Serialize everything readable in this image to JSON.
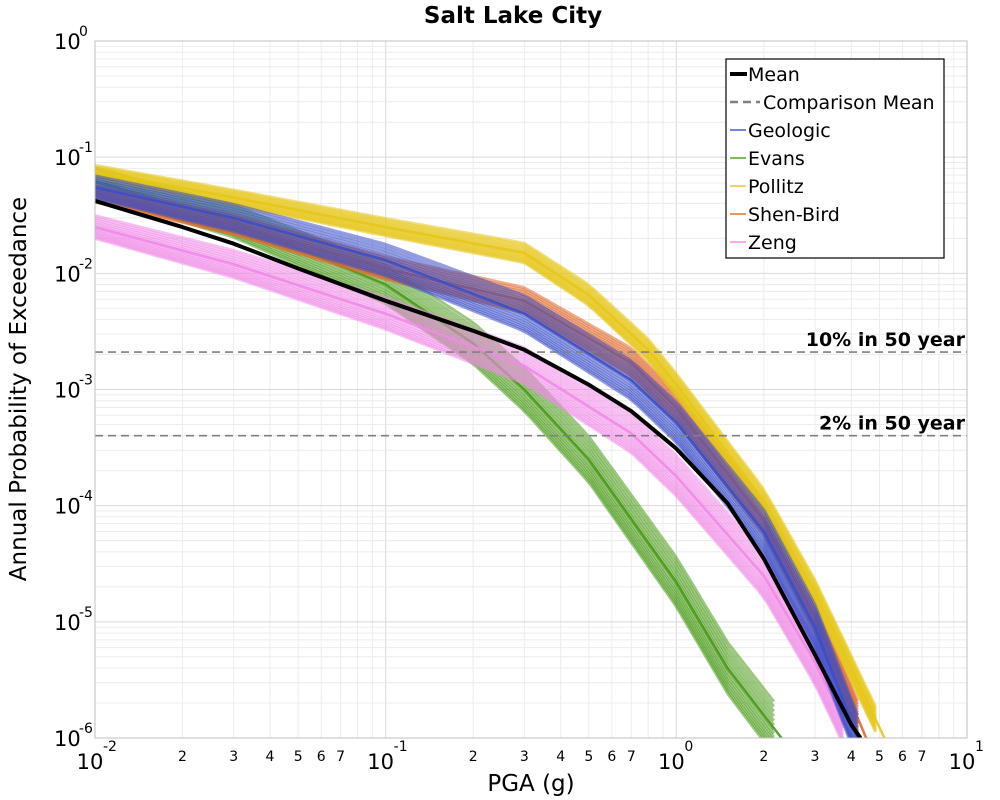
{
  "chart_data": {
    "type": "line",
    "title": "Salt Lake City",
    "xlabel": "PGA (g)",
    "ylabel": "Annual Probability of Exceedance",
    "x_scale": "log",
    "y_scale": "log",
    "xlim": [
      0.01,
      10
    ],
    "ylim": [
      1e-06,
      1
    ],
    "grid": true,
    "legend_position": "top-right",
    "x_major_ticks": [
      {
        "base": "10",
        "exp": "-2",
        "value": 0.01
      },
      {
        "base": "10",
        "exp": "-1",
        "value": 0.1
      },
      {
        "base": "10",
        "exp": "0",
        "value": 1
      },
      {
        "base": "10",
        "exp": "1",
        "value": 10
      }
    ],
    "y_major_ticks": [
      {
        "base": "10",
        "exp": "0",
        "value": 1
      },
      {
        "base": "10",
        "exp": "-1",
        "value": 0.1
      },
      {
        "base": "10",
        "exp": "-2",
        "value": 0.01
      },
      {
        "base": "10",
        "exp": "-3",
        "value": 0.001
      },
      {
        "base": "10",
        "exp": "-4",
        "value": 0.0001
      },
      {
        "base": "10",
        "exp": "-5",
        "value": 1e-05
      },
      {
        "base": "10",
        "exp": "-6",
        "value": 1e-06
      }
    ],
    "x_minor_tick_labels": [
      "2",
      "3",
      "4",
      "5",
      "6",
      "7"
    ],
    "reference_lines": [
      {
        "label": "10% in 50 year",
        "y": 0.0021,
        "color": "#808080"
      },
      {
        "label": "2% in 50 year",
        "y": 0.0004,
        "color": "#808080"
      }
    ],
    "legend": [
      {
        "label": "Mean",
        "color": "#000000",
        "style": "solid-thick"
      },
      {
        "label": "Comparison Mean",
        "color": "#808080",
        "style": "dashed"
      },
      {
        "label": "Geologic",
        "color": "#3a4fc8",
        "style": "solid"
      },
      {
        "label": "Evans",
        "color": "#4a9a1a",
        "style": "solid"
      },
      {
        "label": "Pollitz",
        "color": "#e6c619",
        "style": "solid"
      },
      {
        "label": "Shen-Bird",
        "color": "#e0672a",
        "style": "solid"
      },
      {
        "label": "Zeng",
        "color": "#f08ae8",
        "style": "solid"
      }
    ],
    "series": [
      {
        "name": "Mean",
        "color": "#000000",
        "x": [
          0.01,
          0.02,
          0.03,
          0.05,
          0.1,
          0.2,
          0.3,
          0.5,
          0.7,
          1.0,
          1.5,
          2.0,
          3.0,
          4.0,
          4.3
        ],
        "y": [
          0.042,
          0.025,
          0.018,
          0.011,
          0.0058,
          0.0032,
          0.0022,
          0.0011,
          0.00065,
          0.00031,
          0.000105,
          3.5e-05,
          5.2e-06,
          1.3e-06,
          1e-06
        ]
      },
      {
        "name": "Geologic",
        "color": "#3a4fc8",
        "x": [
          0.01,
          0.03,
          0.1,
          0.3,
          0.7,
          1.0,
          2.0,
          3.0,
          4.2
        ],
        "y": [
          0.055,
          0.03,
          0.013,
          0.0045,
          0.0012,
          0.00052,
          6e-05,
          9e-06,
          1e-06
        ]
      },
      {
        "name": "Evans",
        "color": "#4a9a1a",
        "x": [
          0.01,
          0.03,
          0.1,
          0.2,
          0.3,
          0.5,
          1.0,
          1.5,
          2.3
        ],
        "y": [
          0.062,
          0.028,
          0.008,
          0.0025,
          0.001,
          0.00025,
          2.2e-05,
          4e-06,
          1e-06
        ]
      },
      {
        "name": "Pollitz",
        "color": "#e6c619",
        "x": [
          0.01,
          0.03,
          0.1,
          0.3,
          0.5,
          0.8,
          1.0,
          2.0,
          3.0,
          5.2
        ],
        "y": [
          0.075,
          0.045,
          0.025,
          0.015,
          0.0065,
          0.0022,
          0.0011,
          0.00011,
          1.8e-05,
          1e-06
        ]
      },
      {
        "name": "Shen-Bird",
        "color": "#e0672a",
        "x": [
          0.01,
          0.03,
          0.1,
          0.3,
          0.7,
          1.0,
          2.0,
          3.0,
          4.5
        ],
        "y": [
          0.048,
          0.026,
          0.011,
          0.0058,
          0.0017,
          0.0007,
          7.5e-05,
          1.1e-05,
          1e-06
        ]
      },
      {
        "name": "Zeng",
        "color": "#f08ae8",
        "x": [
          0.01,
          0.03,
          0.1,
          0.3,
          0.7,
          1.0,
          2.0,
          3.0,
          4.0
        ],
        "y": [
          0.025,
          0.012,
          0.0045,
          0.0016,
          0.00042,
          0.00018,
          2.5e-05,
          4.5e-06,
          1e-06
        ]
      }
    ]
  }
}
